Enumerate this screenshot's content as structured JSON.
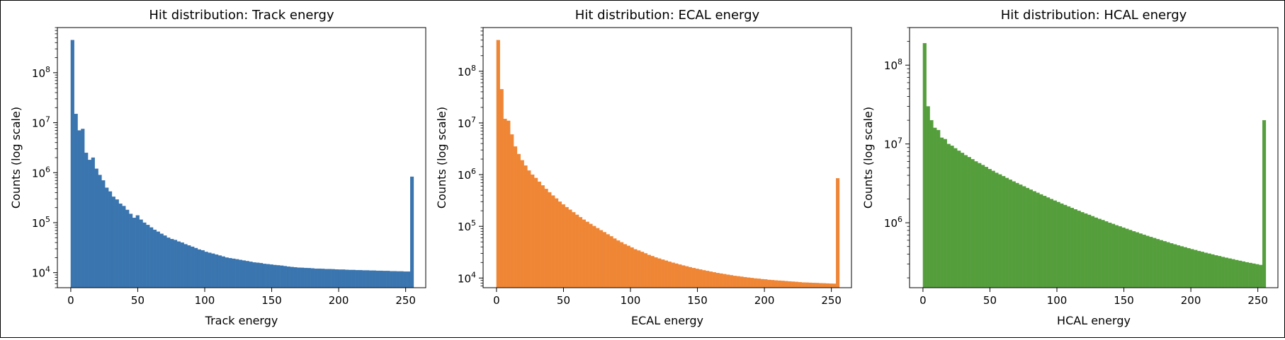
{
  "chart_data": [
    {
      "type": "bar",
      "title": "Hit distribution: Track energy",
      "xlabel": "Track energy",
      "ylabel": "Counts (log scale)",
      "yscale": "log",
      "xlim": [
        -10,
        265
      ],
      "ylim": [
        5000,
        800000000
      ],
      "xticks": [
        0,
        50,
        100,
        150,
        200,
        250
      ],
      "yticks": [
        {
          "base": "10",
          "exp": "4",
          "value": 10000
        },
        {
          "base": "10",
          "exp": "5",
          "value": 100000
        },
        {
          "base": "10",
          "exp": "6",
          "value": 1000000
        },
        {
          "base": "10",
          "exp": "7",
          "value": 10000000
        },
        {
          "base": "10",
          "exp": "8",
          "value": 100000000
        }
      ],
      "bin_width": 2.56,
      "color": "#3a75af",
      "values": [
        450000000,
        15000000,
        7000000,
        7500000,
        2500000,
        1800000,
        2000000,
        1200000,
        900000,
        700000,
        500000,
        420000,
        330000,
        290000,
        240000,
        215000,
        180000,
        150000,
        125000,
        140000,
        115000,
        100000,
        90000,
        80000,
        72000,
        66000,
        60000,
        55000,
        50000,
        47000,
        45000,
        42000,
        40000,
        37000,
        35000,
        33000,
        31000,
        29000,
        28000,
        26000,
        25000,
        24000,
        23000,
        22000,
        21000,
        20000,
        19500,
        19000,
        18500,
        18000,
        17500,
        17000,
        16500,
        16000,
        15800,
        15500,
        15000,
        14800,
        14500,
        14200,
        14000,
        13800,
        13500,
        13200,
        13000,
        12800,
        12600,
        12500,
        12400,
        12300,
        12200,
        12000,
        12000,
        11900,
        11800,
        11800,
        11700,
        11600,
        11500,
        11500,
        11400,
        11300,
        11300,
        11200,
        11200,
        11100,
        11100,
        11000,
        11000,
        10900,
        10900,
        10800,
        10800,
        10700,
        10700,
        10600,
        10600,
        10500,
        10500,
        830000
      ]
    },
    {
      "type": "bar",
      "title": "Hit distribution: ECAL energy",
      "xlabel": "ECAL energy",
      "ylabel": "Counts (log scale)",
      "yscale": "log",
      "xlim": [
        -10,
        265
      ],
      "ylim": [
        6500,
        700000000
      ],
      "xticks": [
        0,
        50,
        100,
        150,
        200,
        250
      ],
      "yticks": [
        {
          "base": "10",
          "exp": "4",
          "value": 10000
        },
        {
          "base": "10",
          "exp": "5",
          "value": 100000
        },
        {
          "base": "10",
          "exp": "6",
          "value": 1000000
        },
        {
          "base": "10",
          "exp": "7",
          "value": 10000000
        },
        {
          "base": "10",
          "exp": "8",
          "value": 100000000
        }
      ],
      "bin_width": 2.56,
      "color": "#ef8636",
      "values": [
        400000000,
        45000000,
        12000000,
        11000000,
        6000000,
        3500000,
        2500000,
        1900000,
        1500000,
        1200000,
        1000000,
        860000,
        730000,
        620000,
        530000,
        455000,
        395000,
        345000,
        300000,
        265000,
        235000,
        210000,
        187000,
        167000,
        150000,
        135000,
        122000,
        111000,
        101000,
        92000,
        84000,
        77000,
        70000,
        64000,
        58000,
        53000,
        49000,
        45000,
        42000,
        39000,
        36000,
        34000,
        32000,
        30000,
        28000,
        26500,
        25000,
        23800,
        22700,
        21700,
        20700,
        19800,
        19000,
        18200,
        17500,
        16800,
        16200,
        15600,
        15100,
        14600,
        14100,
        13700,
        13300,
        12900,
        12500,
        12200,
        11900,
        11600,
        11300,
        11000,
        10800,
        10600,
        10400,
        10200,
        10000,
        9800,
        9700,
        9500,
        9400,
        9200,
        9100,
        9000,
        8900,
        8800,
        8700,
        8600,
        8500,
        8400,
        8300,
        8200,
        8150,
        8100,
        8050,
        8000,
        7950,
        7900,
        7850,
        7800,
        7750,
        850000
      ]
    },
    {
      "type": "bar",
      "title": "Hit distribution: HCAL energy",
      "xlabel": "HCAL energy",
      "ylabel": "Counts (log scale)",
      "yscale": "log",
      "xlim": [
        -10,
        265
      ],
      "ylim": [
        150000,
        300000000
      ],
      "xticks": [
        0,
        50,
        100,
        150,
        200,
        250
      ],
      "yticks": [
        {
          "base": "10",
          "exp": "6",
          "value": 1000000
        },
        {
          "base": "10",
          "exp": "7",
          "value": 10000000
        },
        {
          "base": "10",
          "exp": "8",
          "value": 100000000
        }
      ],
      "bin_width": 2.56,
      "color": "#559e3c",
      "values": [
        190000000,
        30000000,
        20000000,
        16000000,
        15000000,
        12000000,
        11500000,
        10000000,
        9500000,
        8800000,
        8200000,
        7700000,
        7200000,
        6800000,
        6400000,
        6000000,
        5700000,
        5400000,
        5100000,
        4800000,
        4550000,
        4300000,
        4100000,
        3900000,
        3700000,
        3520000,
        3350000,
        3190000,
        3040000,
        2900000,
        2760000,
        2630000,
        2510000,
        2400000,
        2290000,
        2190000,
        2090000,
        2000000,
        1910000,
        1830000,
        1750000,
        1680000,
        1610000,
        1540000,
        1480000,
        1420000,
        1360000,
        1310000,
        1260000,
        1210000,
        1160000,
        1120000,
        1080000,
        1040000,
        1000000,
        965000,
        930000,
        898000,
        867000,
        837000,
        808000,
        780000,
        754000,
        729000,
        705000,
        682000,
        660000,
        639000,
        619000,
        600000,
        582000,
        565000,
        548000,
        532000,
        517000,
        502000,
        488000,
        475000,
        462000,
        450000,
        438000,
        427000,
        416000,
        406000,
        396000,
        386000,
        377000,
        368000,
        360000,
        352000,
        344000,
        336000,
        329000,
        322000,
        315000,
        309000,
        303000,
        297000,
        291000,
        20000000
      ]
    }
  ]
}
